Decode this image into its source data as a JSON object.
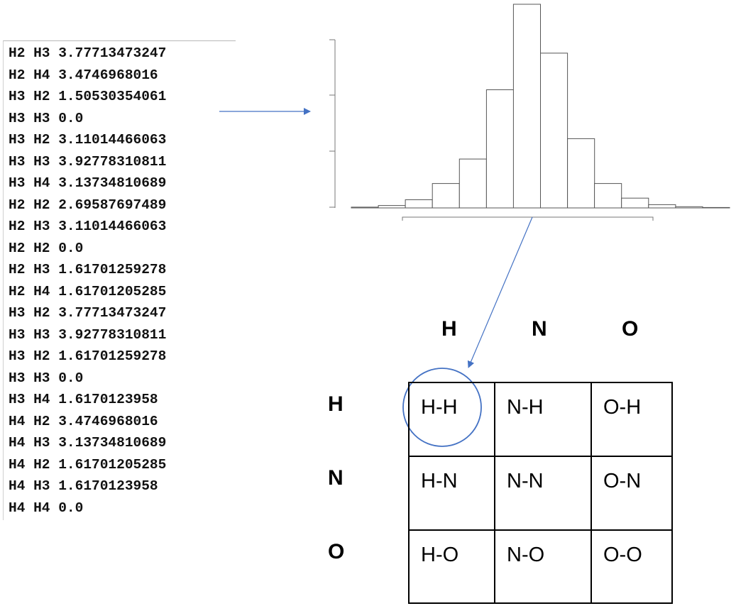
{
  "listing": {
    "rows": [
      "H2 H3 3.77713473247",
      "H2 H4 3.4746968016",
      "H3 H2 1.50530354061",
      "H3 H3 0.0",
      "H3 H2 3.11014466063",
      "H3 H3 3.92778310811",
      "H3 H4 3.13734810689",
      "H2 H2 2.69587697489",
      "H2 H3 3.11014466063",
      "H2 H2 0.0",
      "H2 H3 1.61701259278",
      "H2 H4 1.61701205285",
      "H3 H2 3.77713473247",
      "H3 H3 3.92778310811",
      "H3 H2 1.61701259278",
      "H3 H3 0.0",
      "H3 H4 1.6170123958",
      "H4 H2 3.4746968016",
      "H4 H3 3.13734810689",
      "H4 H2 1.61701205285",
      "H4 H3 1.6170123958",
      "H4 H4 0.0"
    ]
  },
  "chart_data": {
    "type": "bar",
    "title": "",
    "xlabel": "",
    "ylabel": "",
    "grid": false,
    "bar_color": "#ffffff",
    "edge_color": "#555555",
    "values": [
      0.1,
      0.3,
      1.0,
      3.0,
      6.0,
      14.5,
      25.0,
      19.0,
      8.5,
      3.0,
      1.2,
      0.4,
      0.15,
      0.05
    ],
    "ylim": [
      0,
      25
    ]
  },
  "matrix": {
    "column_headers": [
      "H",
      "N",
      "O"
    ],
    "row_headers": [
      "H",
      "N",
      "O"
    ],
    "cells": [
      [
        "H-H",
        "N-H",
        "O-H"
      ],
      [
        "H-N",
        "N-N",
        "O-N"
      ],
      [
        "H-O",
        "N-O",
        "O-O"
      ]
    ],
    "highlight": "H-H",
    "accent_color": "#4472c4"
  }
}
